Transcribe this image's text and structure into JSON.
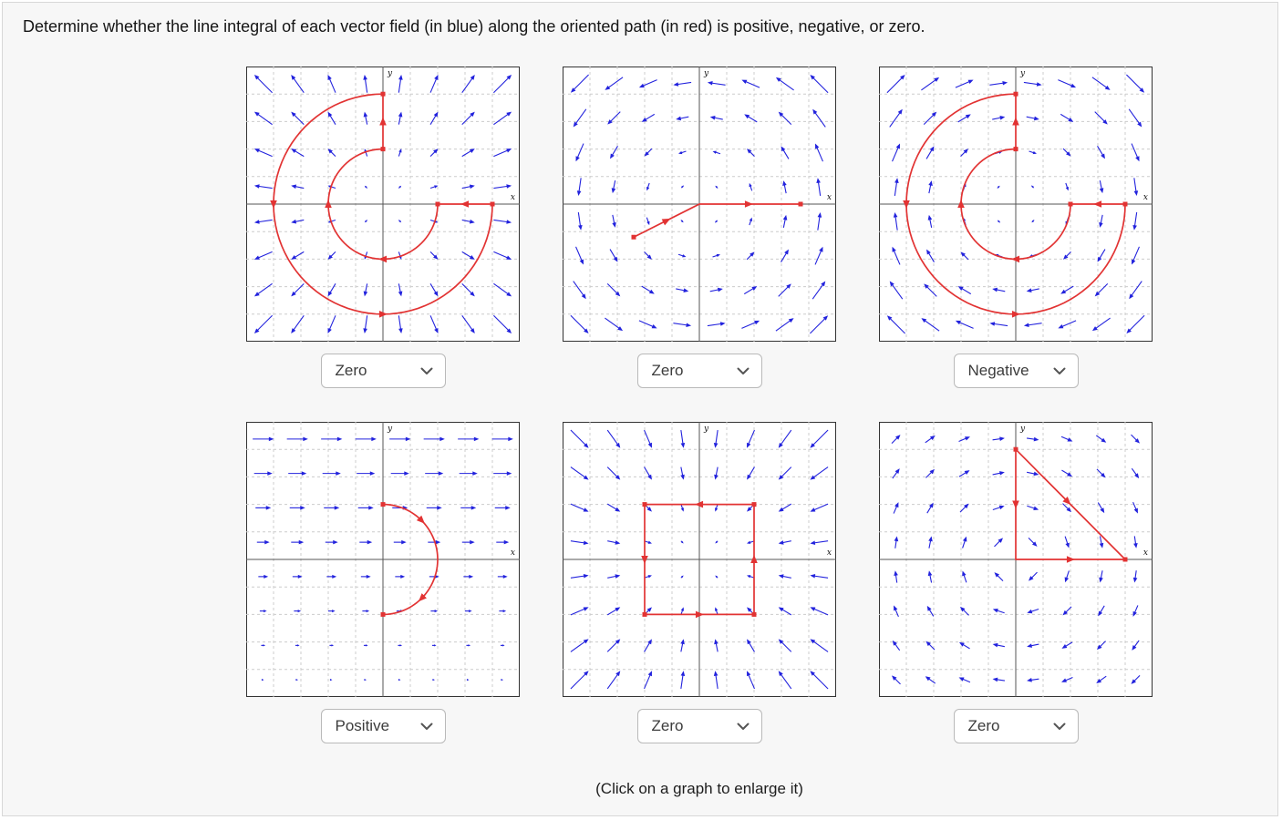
{
  "title": "Determine whether the line integral of each vector field (in blue) along the oriented path (in red) is positive, negative, or zero.",
  "caption": "(Click on a graph to enlarge it)",
  "colors": {
    "field": "#2222dd",
    "path": "#e23333",
    "grid": "#cccccc",
    "axis": "#555555",
    "frame": "#333333"
  },
  "axis": {
    "range": [
      -2.5,
      2.5
    ],
    "grid_step": 0.5,
    "x_label": "x",
    "y_label": "y"
  },
  "field_grid": {
    "start": -2.1875,
    "step": 0.625,
    "count": 8
  },
  "plots": [
    {
      "name": "top-left",
      "field": "radial-outward",
      "answer": "Zero",
      "path": {
        "segments": [
          [
            0,
            1,
            0,
            2
          ],
          [
            2,
            0,
            1,
            0
          ]
        ],
        "arcs": [
          [
            0,
            0,
            2,
            90,
            360
          ],
          [
            0,
            0,
            1,
            360,
            90
          ]
        ],
        "arrows": [
          [
            0,
            1.5,
            0,
            1
          ],
          [
            -2,
            0,
            0,
            -1
          ],
          [
            0,
            -2,
            1,
            0
          ],
          [
            1.5,
            0,
            -1,
            0
          ],
          [
            0,
            -1,
            -1,
            0
          ],
          [
            -1,
            0,
            0,
            1
          ]
        ],
        "dots": [
          [
            0,
            1
          ],
          [
            0,
            2
          ],
          [
            2,
            0
          ],
          [
            1,
            0
          ]
        ]
      }
    },
    {
      "name": "top-middle",
      "field": "rotation-ccw",
      "answer": "Zero",
      "path": {
        "segments": [
          [
            -1.2,
            -0.6,
            0,
            0
          ],
          [
            0,
            0,
            1.85,
            0
          ]
        ],
        "arcs": [],
        "arrows": [
          [
            -0.6,
            -0.3,
            0.894,
            0.447
          ],
          [
            0.9,
            0,
            1,
            0
          ]
        ],
        "dots": [
          [
            -1.2,
            -0.6
          ],
          [
            1.85,
            0
          ]
        ]
      }
    },
    {
      "name": "top-right",
      "field": "rotation-cw",
      "answer": "Negative",
      "path": {
        "segments": [
          [
            0,
            1,
            0,
            2
          ],
          [
            2,
            0,
            1,
            0
          ]
        ],
        "arcs": [
          [
            0,
            0,
            2,
            90,
            360
          ],
          [
            0,
            0,
            1,
            360,
            90
          ]
        ],
        "arrows": [
          [
            0,
            1.5,
            0,
            1
          ],
          [
            -2,
            0,
            0,
            -1
          ],
          [
            0,
            -2,
            1,
            0
          ],
          [
            1.5,
            0,
            -1,
            0
          ],
          [
            0,
            -1,
            -1,
            0
          ],
          [
            -1,
            0,
            0,
            1
          ]
        ],
        "dots": [
          [
            0,
            1
          ],
          [
            0,
            2
          ],
          [
            2,
            0
          ],
          [
            1,
            0
          ]
        ]
      }
    },
    {
      "name": "bottom-left",
      "field": "shear-right",
      "answer": "Positive",
      "path": {
        "segments": [],
        "arcs": [
          [
            0,
            0,
            1,
            90,
            -90
          ]
        ],
        "arrows": [
          [
            0.707,
            0.707,
            0.707,
            -0.707
          ],
          [
            0.707,
            -0.707,
            -0.707,
            -0.707
          ]
        ],
        "dots": [
          [
            0,
            1
          ],
          [
            0,
            -1
          ]
        ]
      }
    },
    {
      "name": "bottom-middle",
      "field": "radial-inward",
      "answer": "Zero",
      "path": {
        "segments": [
          [
            1,
            1,
            -1,
            1
          ],
          [
            -1,
            1,
            -1,
            -1
          ],
          [
            -1,
            -1,
            1,
            -1
          ],
          [
            1,
            -1,
            1,
            1
          ]
        ],
        "arcs": [],
        "arrows": [
          [
            0,
            1,
            -1,
            0
          ],
          [
            -1,
            0,
            0,
            -1
          ],
          [
            0,
            -1,
            1,
            0
          ],
          [
            1,
            0,
            0,
            1
          ]
        ],
        "dots": [
          [
            1,
            1
          ],
          [
            -1,
            1
          ],
          [
            -1,
            -1
          ],
          [
            1,
            -1
          ]
        ]
      }
    },
    {
      "name": "bottom-right",
      "field": "vortex-cw",
      "answer": "Zero",
      "path": {
        "segments": [
          [
            0,
            2,
            0,
            0
          ],
          [
            0,
            0,
            2,
            0
          ],
          [
            0,
            2,
            2,
            0
          ]
        ],
        "arcs": [],
        "arrows": [
          [
            0,
            1,
            0,
            -1
          ],
          [
            1,
            0,
            1,
            0
          ],
          [
            0.95,
            1.05,
            0.707,
            -0.707
          ]
        ],
        "dots": [
          [
            0,
            2
          ],
          [
            2,
            0
          ]
        ]
      }
    }
  ]
}
